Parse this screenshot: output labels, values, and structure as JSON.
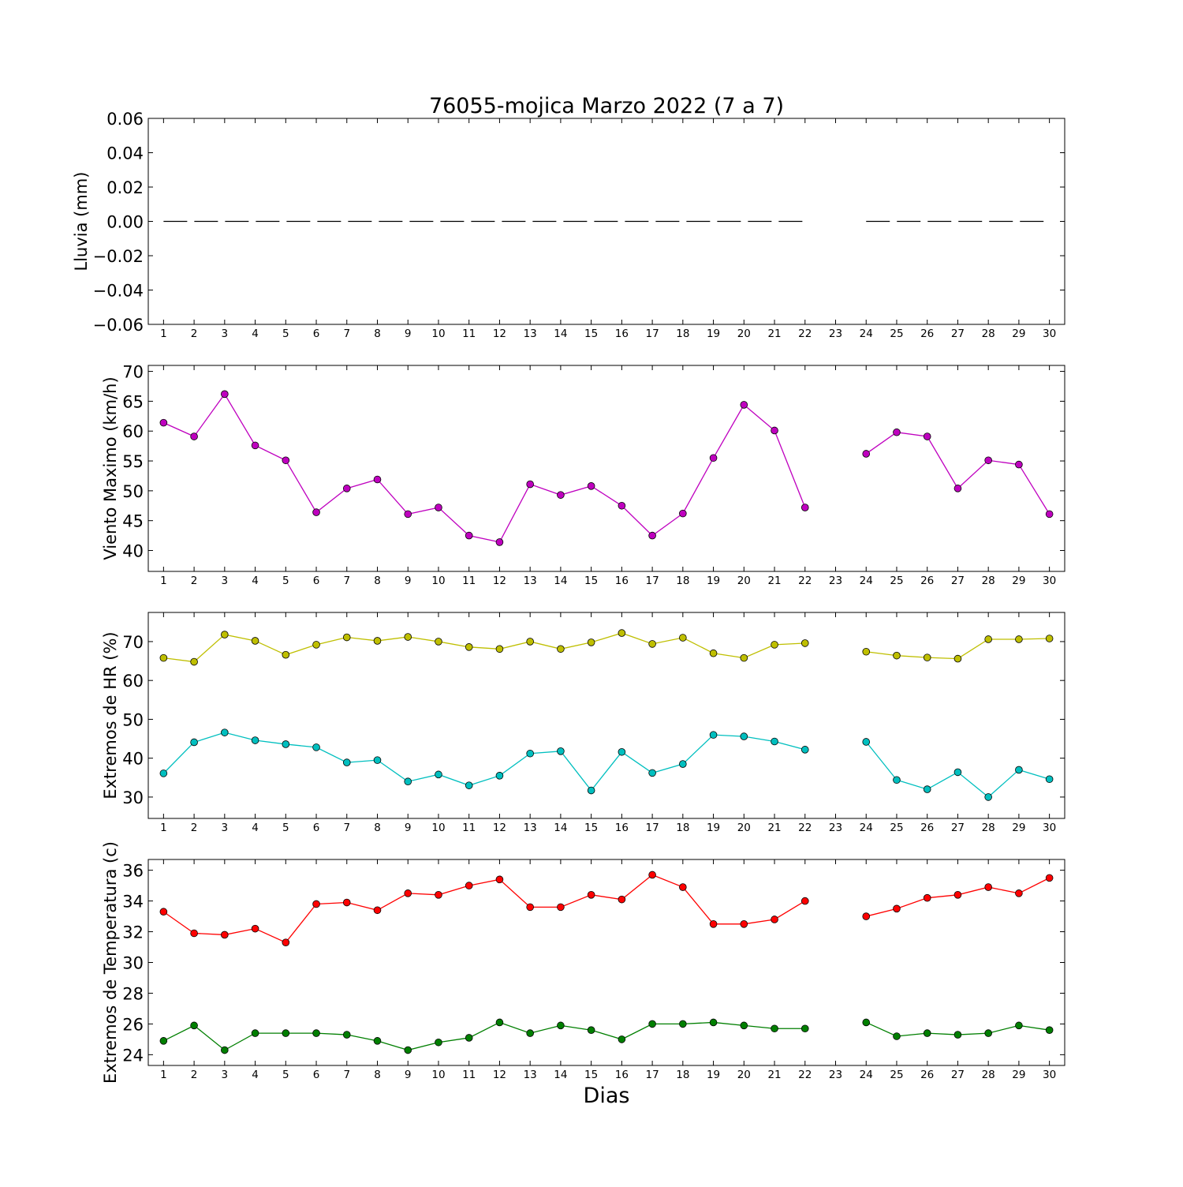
{
  "title": "76055-mojica Marzo 2022  (7 a 7)",
  "xlabel": "Dias",
  "chart_data": [
    {
      "type": "line",
      "ylabel": "Lluvia (mm)",
      "ylim": [
        -0.06,
        0.06
      ],
      "yticks": [
        -0.06,
        -0.04,
        -0.02,
        0.0,
        0.02,
        0.04,
        0.06
      ],
      "ytick_labels": [
        "−0.06",
        "−0.04",
        "−0.02",
        "0.00",
        "0.02",
        "0.04",
        "0.06"
      ],
      "categories": [
        "1",
        "2",
        "3",
        "4",
        "5",
        "6",
        "7",
        "8",
        "9",
        "10",
        "11",
        "12",
        "13",
        "14",
        "15",
        "16",
        "17",
        "18",
        "19",
        "20",
        "21",
        "22",
        "23",
        "24",
        "25",
        "26",
        "27",
        "28",
        "29",
        "30"
      ],
      "series": [
        {
          "color": "#000000",
          "style": "dashed",
          "marker": false,
          "values": [
            0,
            0,
            0,
            0,
            0,
            0,
            0,
            0,
            0,
            0,
            0,
            0,
            0,
            0,
            0,
            0,
            0,
            0,
            0,
            0,
            0,
            0,
            null,
            0,
            0,
            0,
            0,
            0,
            0,
            0
          ]
        }
      ]
    },
    {
      "type": "line",
      "ylabel": "Viento Maximo (km/h)",
      "ylim": [
        36.5,
        71
      ],
      "yticks": [
        40,
        45,
        50,
        55,
        60,
        65,
        70
      ],
      "ytick_labels": [
        "40",
        "45",
        "50",
        "55",
        "60",
        "65",
        "70"
      ],
      "categories": [
        "1",
        "2",
        "3",
        "4",
        "5",
        "6",
        "7",
        "8",
        "9",
        "10",
        "11",
        "12",
        "13",
        "14",
        "15",
        "16",
        "17",
        "18",
        "19",
        "20",
        "21",
        "22",
        "23",
        "24",
        "25",
        "26",
        "27",
        "28",
        "29",
        "30"
      ],
      "series": [
        {
          "color": "#bf00bf",
          "style": "solid",
          "marker": true,
          "values": [
            61.4,
            59.1,
            66.2,
            57.6,
            55.1,
            46.4,
            50.4,
            51.9,
            46.1,
            47.2,
            42.5,
            41.4,
            51.1,
            49.3,
            50.8,
            47.5,
            42.5,
            46.2,
            55.5,
            64.4,
            60.1,
            47.2,
            null,
            56.2,
            59.8,
            59.1,
            50.4,
            55.1,
            54.4,
            46.1
          ]
        }
      ]
    },
    {
      "type": "line",
      "ylabel": "Extremos de HR (%)",
      "ylim": [
        24.5,
        77.5
      ],
      "yticks": [
        30,
        40,
        50,
        60,
        70
      ],
      "ytick_labels": [
        "30",
        "40",
        "50",
        "60",
        "70"
      ],
      "categories": [
        "1",
        "2",
        "3",
        "4",
        "5",
        "6",
        "7",
        "8",
        "9",
        "10",
        "11",
        "12",
        "13",
        "14",
        "15",
        "16",
        "17",
        "18",
        "19",
        "20",
        "21",
        "22",
        "23",
        "24",
        "25",
        "26",
        "27",
        "28",
        "29",
        "30"
      ],
      "series": [
        {
          "color": "#bfbf00",
          "style": "solid",
          "marker": true,
          "values": [
            65.8,
            64.8,
            71.8,
            70.2,
            66.6,
            69.2,
            71.1,
            70.2,
            71.2,
            70.0,
            68.6,
            68.1,
            70.0,
            68.1,
            69.8,
            72.2,
            69.4,
            71.0,
            67.0,
            65.8,
            69.2,
            69.6,
            null,
            67.4,
            66.4,
            65.9,
            65.6,
            70.6,
            70.6,
            70.8
          ]
        },
        {
          "color": "#00bfbf",
          "style": "solid",
          "marker": true,
          "values": [
            36.1,
            44.1,
            46.6,
            44.6,
            43.6,
            42.8,
            38.9,
            39.5,
            34.0,
            35.8,
            33.0,
            35.5,
            41.2,
            41.8,
            31.7,
            41.6,
            36.2,
            38.5,
            46.0,
            45.6,
            44.3,
            42.2,
            null,
            44.2,
            34.4,
            32.0,
            36.4,
            30.0,
            37.0,
            34.6
          ]
        }
      ]
    },
    {
      "type": "line",
      "ylabel": "Extremos de Temperatura (c)",
      "ylim": [
        23.3,
        36.7
      ],
      "yticks": [
        24,
        26,
        28,
        30,
        32,
        34,
        36
      ],
      "ytick_labels": [
        "24",
        "26",
        "28",
        "30",
        "32",
        "34",
        "36"
      ],
      "categories": [
        "1",
        "2",
        "3",
        "4",
        "5",
        "6",
        "7",
        "8",
        "9",
        "10",
        "11",
        "12",
        "13",
        "14",
        "15",
        "16",
        "17",
        "18",
        "19",
        "20",
        "21",
        "22",
        "23",
        "24",
        "25",
        "26",
        "27",
        "28",
        "29",
        "30"
      ],
      "series": [
        {
          "color": "#ff0000",
          "style": "solid",
          "marker": true,
          "values": [
            33.3,
            31.9,
            31.8,
            32.2,
            31.3,
            33.8,
            33.9,
            33.4,
            34.5,
            34.4,
            35.0,
            35.4,
            33.6,
            33.6,
            34.4,
            34.1,
            35.7,
            34.9,
            32.5,
            32.5,
            32.8,
            34.0,
            null,
            33.0,
            33.5,
            34.2,
            34.4,
            34.9,
            34.5,
            35.5
          ]
        },
        {
          "color": "#007f00",
          "style": "solid",
          "marker": true,
          "values": [
            24.9,
            25.9,
            24.3,
            25.4,
            25.4,
            25.4,
            25.3,
            24.9,
            24.3,
            24.8,
            25.1,
            26.1,
            25.4,
            25.9,
            25.6,
            25.0,
            26.0,
            26.0,
            26.1,
            25.9,
            25.7,
            25.7,
            null,
            26.1,
            25.2,
            25.4,
            25.3,
            25.4,
            25.9,
            25.6
          ]
        }
      ]
    }
  ]
}
